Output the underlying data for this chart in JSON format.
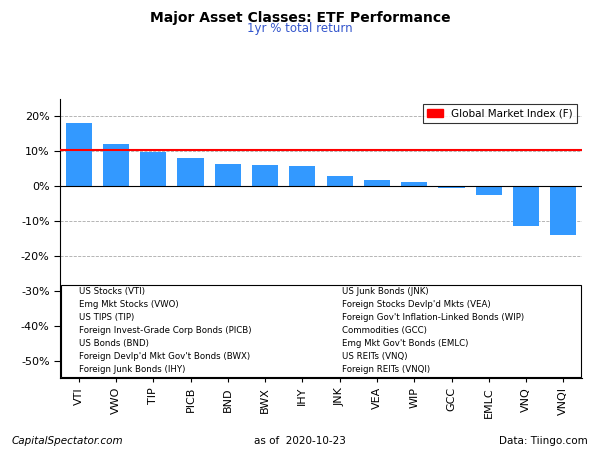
{
  "title": "Major Asset Classes: ETF Performance",
  "subtitle": "1yr % total return",
  "categories": [
    "VTI",
    "VWO",
    "TIP",
    "PICB",
    "BND",
    "BWX",
    "IHY",
    "JNK",
    "VEA",
    "WIP",
    "GCC",
    "EMLC",
    "VNQ",
    "VNQI"
  ],
  "values": [
    18.0,
    12.0,
    9.8,
    8.2,
    6.5,
    6.0,
    5.7,
    3.0,
    1.8,
    1.3,
    -0.5,
    -2.5,
    -11.5,
    -14.0
  ],
  "bar_color": "#3399FF",
  "gmi_line": 10.3,
  "gmi_color": "#FF0000",
  "ylim": [
    -55,
    25
  ],
  "yticks": [
    -50,
    -40,
    -30,
    -20,
    -10,
    0,
    10,
    20
  ],
  "background_color": "#FFFFFF",
  "grid_color": "#AAAAAA",
  "footer_left": "CapitalSpectator.com",
  "footer_center": "as of  2020-10-23",
  "footer_right": "Data: Tiingo.com",
  "legend_label": "Global Market Index (F)",
  "legend_items_left": [
    "US Stocks (VTI)",
    "Emg Mkt Stocks (VWO)",
    "US TIPS (TIP)",
    "Foreign Invest-Grade Corp Bonds (PICB)",
    "US Bonds (BND)",
    "Foreign Devlp'd Mkt Gov't Bonds (BWX)",
    "Foreign Junk Bonds (IHY)"
  ],
  "legend_items_right": [
    "US Junk Bonds (JNK)",
    "Foreign Stocks Devlp'd Mkts (VEA)",
    "Foreign Gov't Inflation-Linked Bonds (WIP)",
    "Commodities (GCC)",
    "Emg Mkt Gov't Bonds (EMLC)",
    "US REITs (VNQ)",
    "Foreign REITs (VNQI)"
  ]
}
